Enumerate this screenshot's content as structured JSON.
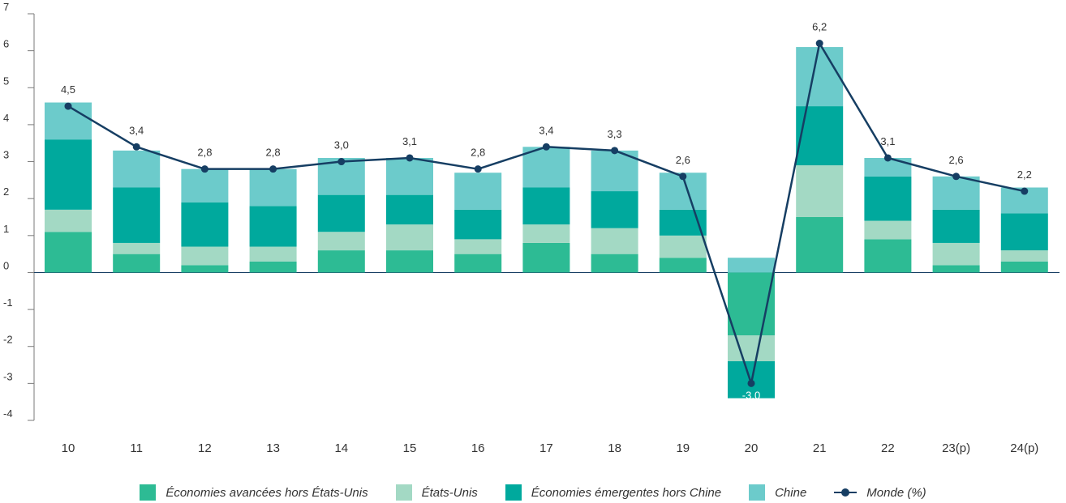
{
  "chart_data": {
    "type": "bar",
    "stacked": true,
    "categories": [
      "10",
      "11",
      "12",
      "13",
      "14",
      "15",
      "16",
      "17",
      "18",
      "19",
      "20",
      "21",
      "22",
      "23(p)",
      "24(p)"
    ],
    "series": [
      {
        "name": "Économies avancées hors États-Unis",
        "color": "#2dbb94",
        "values": [
          1.1,
          0.5,
          0.2,
          0.3,
          0.6,
          0.6,
          0.5,
          0.8,
          0.5,
          0.4,
          -1.7,
          1.5,
          0.9,
          0.2,
          0.3
        ]
      },
      {
        "name": "États-Unis",
        "color": "#a3d9c4",
        "values": [
          0.6,
          0.3,
          0.5,
          0.4,
          0.5,
          0.7,
          0.4,
          0.5,
          0.7,
          0.6,
          -0.7,
          1.4,
          0.5,
          0.6,
          0.3
        ]
      },
      {
        "name": "Économies émergentes hors Chine",
        "color": "#00a99d",
        "values": [
          1.9,
          1.5,
          1.2,
          1.1,
          1.0,
          0.8,
          0.8,
          1.0,
          1.0,
          0.7,
          -1.0,
          1.6,
          1.2,
          0.9,
          1.0
        ]
      },
      {
        "name": "Chine",
        "color": "#6ccbcb",
        "values": [
          1.0,
          1.0,
          0.9,
          1.0,
          1.0,
          1.0,
          1.0,
          1.1,
          1.1,
          1.0,
          0.4,
          1.6,
          0.5,
          0.9,
          0.7
        ]
      }
    ],
    "line": {
      "name": "Monde (%)",
      "color": "#163e63",
      "values": [
        4.5,
        3.4,
        2.8,
        2.8,
        3.0,
        3.1,
        2.8,
        3.4,
        3.3,
        2.6,
        -3.0,
        6.2,
        3.1,
        2.6,
        2.2
      ],
      "labels": [
        "4,5",
        "3,4",
        "2,8",
        "2,8",
        "3,0",
        "3,1",
        "2,8",
        "3,4",
        "3,3",
        "2,6",
        "-3,0",
        "6,2",
        "3,1",
        "2,6",
        "2,2"
      ]
    },
    "yticks": [
      "7",
      "6",
      "5",
      "4",
      "3",
      "2",
      "1",
      "0",
      "-1",
      "-2",
      "-3",
      "-4"
    ],
    "ylim": [
      -4,
      7
    ],
    "grid": false,
    "legend_position": "bottom"
  },
  "legend": [
    {
      "label": "Économies avancées hors États-Unis",
      "color": "#2dbb94"
    },
    {
      "label": "États-Unis",
      "color": "#a3d9c4"
    },
    {
      "label": "Économies émergentes hors Chine",
      "color": "#00a99d"
    },
    {
      "label": "Chine",
      "color": "#6ccbcb"
    }
  ],
  "legend_line": {
    "label": "Monde (%)",
    "color": "#163e63"
  }
}
